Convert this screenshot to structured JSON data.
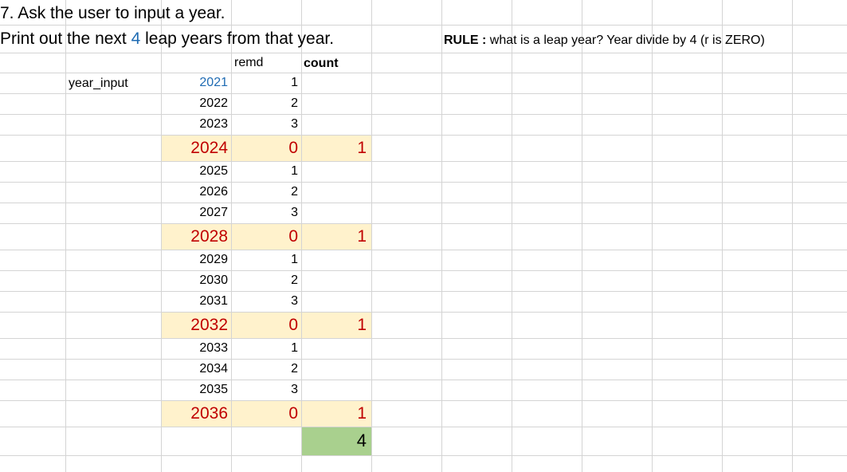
{
  "sheet": {
    "title_line1": "7. Ask the user to input a year.",
    "title_line2_pre": "Print out the next",
    "title_line2_num": "4",
    "title_line2_post": "leap years from that year.",
    "rule_label": "RULE :",
    "rule_text": "what is a leap year? Year divide by 4 (r is ZERO)",
    "header_remd": "remd",
    "header_count": "count",
    "input_label": "year_input",
    "colors": {
      "highlight": "#fff2cc",
      "total_fill": "#a9d08e",
      "input_blue": "#1f6bb3",
      "leap_red": "#c00000",
      "gridline": "#d4d4d4"
    },
    "rows": [
      {
        "year": "2021",
        "remd": "1",
        "count": "",
        "leap": false,
        "input": true
      },
      {
        "year": "2022",
        "remd": "2",
        "count": "",
        "leap": false,
        "input": false
      },
      {
        "year": "2023",
        "remd": "3",
        "count": "",
        "leap": false,
        "input": false
      },
      {
        "year": "2024",
        "remd": "0",
        "count": "1",
        "leap": true,
        "input": false
      },
      {
        "year": "2025",
        "remd": "1",
        "count": "",
        "leap": false,
        "input": false
      },
      {
        "year": "2026",
        "remd": "2",
        "count": "",
        "leap": false,
        "input": false
      },
      {
        "year": "2027",
        "remd": "3",
        "count": "",
        "leap": false,
        "input": false
      },
      {
        "year": "2028",
        "remd": "0",
        "count": "1",
        "leap": true,
        "input": false
      },
      {
        "year": "2029",
        "remd": "1",
        "count": "",
        "leap": false,
        "input": false
      },
      {
        "year": "2030",
        "remd": "2",
        "count": "",
        "leap": false,
        "input": false
      },
      {
        "year": "2031",
        "remd": "3",
        "count": "",
        "leap": false,
        "input": false
      },
      {
        "year": "2032",
        "remd": "0",
        "count": "1",
        "leap": true,
        "input": false
      },
      {
        "year": "2033",
        "remd": "1",
        "count": "",
        "leap": false,
        "input": false
      },
      {
        "year": "2034",
        "remd": "2",
        "count": "",
        "leap": false,
        "input": false
      },
      {
        "year": "2035",
        "remd": "3",
        "count": "",
        "leap": false,
        "input": false
      },
      {
        "year": "2036",
        "remd": "0",
        "count": "1",
        "leap": true,
        "input": false
      }
    ],
    "total_count": "4"
  }
}
